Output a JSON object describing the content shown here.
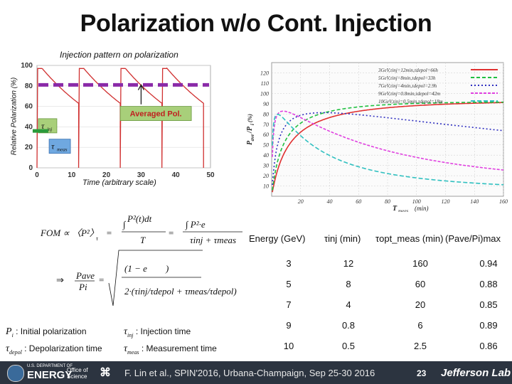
{
  "slide": {
    "title": "Polarization w/o Cont. Injection",
    "left_caption": "Injection pattern on polarization",
    "left_ylabel": "Relative Polarization (%)",
    "left_xlabel": "Time (arbitrary scale)",
    "avg_pol_label": "Averaged Pol.",
    "tau_inj": "τ",
    "tau_inj_sub": "inj",
    "tau_meas": "τ",
    "tau_meas_sub": "meas"
  },
  "left_chart": {
    "type": "line",
    "x_ticks": [
      "0",
      "10",
      "20",
      "30",
      "40",
      "50"
    ],
    "y_ticks": [
      "0",
      "20",
      "40",
      "60",
      "80",
      "100"
    ],
    "xlim": [
      0,
      50
    ],
    "ylim": [
      0,
      100
    ],
    "avg_pol_level": 81,
    "cycles": [
      {
        "start": 0,
        "inj_end": 1.5,
        "end": 12
      },
      {
        "start": 12,
        "inj_end": 13.5,
        "end": 24
      },
      {
        "start": 24,
        "inj_end": 25.5,
        "end": 36
      },
      {
        "start": 36,
        "inj_end": 37.5,
        "end": 48
      }
    ],
    "p_initial": 97,
    "p_end": 63
  },
  "chart_data": {
    "type": "line",
    "xlabel": "T",
    "xlabel_sub": "meas",
    "xlabel_unit": "(min)",
    "ylabel": "P",
    "ylabel_sub": "ave",
    "ylabel_mid": "/P",
    "ylabel_sub2": "i",
    "ylabel_unit": "(%)",
    "xlim": [
      0,
      160
    ],
    "ylim": [
      0,
      130
    ],
    "x_ticks": [
      "20",
      "40",
      "60",
      "80",
      "100",
      "120",
      "140",
      "160"
    ],
    "y_ticks": [
      "10",
      "20",
      "30",
      "40",
      "50",
      "60",
      "70",
      "80",
      "90",
      "100",
      "110",
      "120"
    ],
    "series": [
      {
        "name": "3GeV,τinj=12min,τdepol=66h",
        "color": "#e03030",
        "dash": "",
        "tinj": 12,
        "tdep": 3960
      },
      {
        "name": "5GeV,τinj=8min,τdepol=33h",
        "color": "#20c040",
        "dash": "5,3",
        "tinj": 8,
        "tdep": 1980
      },
      {
        "name": "7GeV,τinj=4min,τdepol=2.9h",
        "color": "#3030c0",
        "dash": "2,3",
        "tinj": 4,
        "tdep": 174
      },
      {
        "name": "9GeV,τinj=0.8min,τdepol=42m",
        "color": "#e040e0",
        "dash": "4,2",
        "tinj": 0.8,
        "tdep": 42
      },
      {
        "name": "10GeV,τinj=0.5min,τdepol=18m",
        "color": "#30c0c0",
        "dash": "6,3",
        "tinj": 0.5,
        "tdep": 18
      }
    ]
  },
  "table": {
    "headers": [
      "Energy (GeV)",
      "τinj (min)",
      "τopt_meas (min)",
      "(Pave/Pi)max"
    ],
    "rows": [
      [
        "3",
        "12",
        "160",
        "0.94"
      ],
      [
        "5",
        "8",
        "60",
        "0.88"
      ],
      [
        "7",
        "4",
        "20",
        "0.85"
      ],
      [
        "9",
        "0.8",
        "6",
        "0.89"
      ],
      [
        "10",
        "0.5",
        "2.5",
        "0.86"
      ]
    ]
  },
  "legend_text": {
    "pi": ": Initial polarization",
    "tdepol": ": Depolarization time",
    "tinj": ": Injection time",
    "tmeas": ": Measurement time"
  },
  "footer": {
    "citation": "F. Lin et al., SPIN'2016, Urbana-Champaign, Sep 25-30 2016",
    "page": "23",
    "doe": "ENERGY",
    "doe_small": "U.S. DEPARTMENT OF",
    "office": "Office of Science",
    "jlab": "Jefferson Lab"
  }
}
